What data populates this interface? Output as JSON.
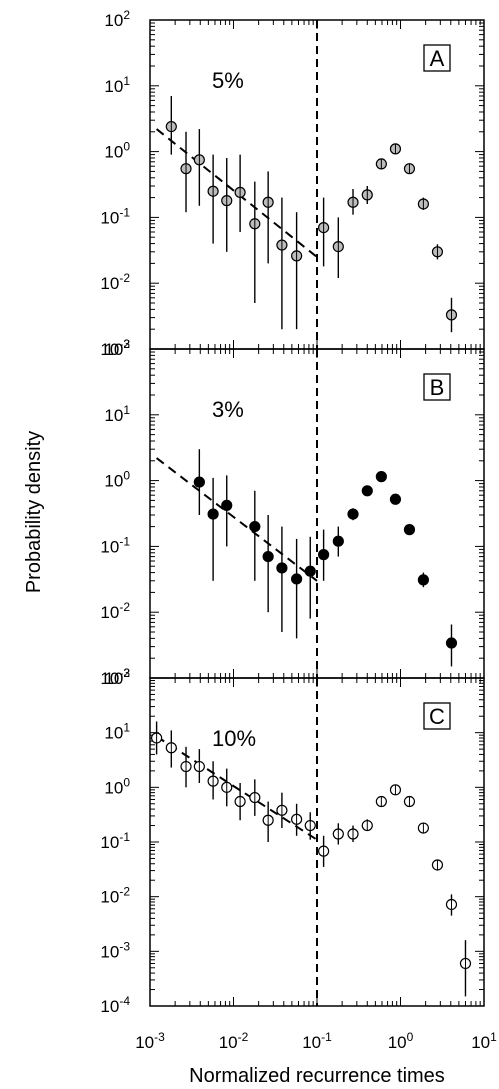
{
  "chart_data": {
    "type": "scatter",
    "x_scale": "log",
    "y_scale": "log",
    "xlabel": "Normalized recurrence times",
    "ylabel": "Probability density",
    "xlim": [
      0.001,
      10
    ],
    "x_ticks": [
      {
        "base": "10",
        "exp": "-3"
      },
      {
        "base": "10",
        "exp": "-2"
      },
      {
        "base": "10",
        "exp": "-1"
      },
      {
        "base": "10",
        "exp": "0"
      },
      {
        "base": "10",
        "exp": "1"
      }
    ],
    "vertical_line_x": 0.1,
    "panels": [
      {
        "tag": "A",
        "annotation": "5%",
        "marker": "gray",
        "ylim": [
          0.001,
          100
        ],
        "y_ticks": [
          {
            "base": "10",
            "exp": "2"
          },
          {
            "base": "10",
            "exp": "1"
          },
          {
            "base": "10",
            "exp": "0"
          },
          {
            "base": "10",
            "exp": "-1"
          },
          {
            "base": "10",
            "exp": "-2"
          },
          {
            "base": "10",
            "exp": "-3"
          }
        ],
        "fit_line": {
          "x": [
            0.0012,
            0.1
          ],
          "y": [
            2.2,
            0.025
          ]
        },
        "points": [
          {
            "x": 0.0018,
            "y": 2.4,
            "lo": 0.9,
            "hi": 7
          },
          {
            "x": 0.0027,
            "y": 0.55,
            "lo": 0.12,
            "hi": 2.0
          },
          {
            "x": 0.0039,
            "y": 0.75,
            "lo": 0.15,
            "hi": 2.2
          },
          {
            "x": 0.0057,
            "y": 0.25,
            "lo": 0.04,
            "hi": 0.9
          },
          {
            "x": 0.0083,
            "y": 0.18,
            "lo": 0.03,
            "hi": 0.8
          },
          {
            "x": 0.012,
            "y": 0.24,
            "lo": 0.06,
            "hi": 0.9
          },
          {
            "x": 0.018,
            "y": 0.08,
            "lo": 0.005,
            "hi": 0.35
          },
          {
            "x": 0.026,
            "y": 0.17,
            "lo": 0.02,
            "hi": 0.5
          },
          {
            "x": 0.038,
            "y": 0.038,
            "lo": 0.002,
            "hi": 0.2
          },
          {
            "x": 0.057,
            "y": 0.026,
            "lo": 0.002,
            "hi": 0.12
          },
          {
            "x": 0.12,
            "y": 0.07,
            "lo": 0.018,
            "hi": 0.2
          },
          {
            "x": 0.18,
            "y": 0.036,
            "lo": 0.012,
            "hi": 0.1
          },
          {
            "x": 0.27,
            "y": 0.17,
            "lo": 0.11,
            "hi": 0.27
          },
          {
            "x": 0.4,
            "y": 0.22,
            "lo": 0.16,
            "hi": 0.3
          },
          {
            "x": 0.59,
            "y": 0.65,
            "lo": 0.55,
            "hi": 0.77
          },
          {
            "x": 0.87,
            "y": 1.1,
            "lo": 0.95,
            "hi": 1.3
          },
          {
            "x": 1.28,
            "y": 0.55,
            "lo": 0.46,
            "hi": 0.65
          },
          {
            "x": 1.88,
            "y": 0.16,
            "lo": 0.13,
            "hi": 0.2
          },
          {
            "x": 2.77,
            "y": 0.03,
            "lo": 0.023,
            "hi": 0.039
          },
          {
            "x": 4.08,
            "y": 0.0033,
            "lo": 0.0018,
            "hi": 0.006
          }
        ]
      },
      {
        "tag": "B",
        "annotation": "3%",
        "marker": "black",
        "ylim": [
          0.001,
          100
        ],
        "y_ticks": [
          {
            "base": "10",
            "exp": "2"
          },
          {
            "base": "10",
            "exp": "1"
          },
          {
            "base": "10",
            "exp": "0"
          },
          {
            "base": "10",
            "exp": "-1"
          },
          {
            "base": "10",
            "exp": "-2"
          },
          {
            "base": "10",
            "exp": "-3"
          }
        ],
        "fit_line": {
          "x": [
            0.0012,
            0.1
          ],
          "y": [
            2.2,
            0.03
          ]
        },
        "points": [
          {
            "x": 0.0039,
            "y": 0.95,
            "lo": 0.3,
            "hi": 3.0
          },
          {
            "x": 0.0057,
            "y": 0.31,
            "lo": 0.03,
            "hi": 1.1
          },
          {
            "x": 0.0083,
            "y": 0.42,
            "lo": 0.1,
            "hi": 1.2
          },
          {
            "x": 0.018,
            "y": 0.2,
            "lo": 0.03,
            "hi": 0.7
          },
          {
            "x": 0.026,
            "y": 0.07,
            "lo": 0.01,
            "hi": 0.3
          },
          {
            "x": 0.038,
            "y": 0.047,
            "lo": 0.005,
            "hi": 0.2
          },
          {
            "x": 0.057,
            "y": 0.032,
            "lo": 0.004,
            "hi": 0.13
          },
          {
            "x": 0.083,
            "y": 0.042,
            "lo": 0.008,
            "hi": 0.14
          },
          {
            "x": 0.12,
            "y": 0.075,
            "lo": 0.03,
            "hi": 0.18
          },
          {
            "x": 0.18,
            "y": 0.12,
            "lo": 0.07,
            "hi": 0.2
          },
          {
            "x": 0.27,
            "y": 0.31,
            "lo": 0.25,
            "hi": 0.38
          },
          {
            "x": 0.4,
            "y": 0.7,
            "lo": 0.6,
            "hi": 0.8
          },
          {
            "x": 0.59,
            "y": 1.15,
            "lo": 1.0,
            "hi": 1.3
          },
          {
            "x": 0.87,
            "y": 0.52,
            "lo": 0.45,
            "hi": 0.6
          },
          {
            "x": 1.28,
            "y": 0.18,
            "lo": 0.15,
            "hi": 0.22
          },
          {
            "x": 1.88,
            "y": 0.031,
            "lo": 0.024,
            "hi": 0.04
          },
          {
            "x": 4.08,
            "y": 0.0034,
            "lo": 0.0015,
            "hi": 0.0065
          }
        ]
      },
      {
        "tag": "C",
        "annotation": "10%",
        "marker": "white",
        "ylim": [
          0.0001,
          100
        ],
        "y_ticks": [
          {
            "base": "10",
            "exp": "2"
          },
          {
            "base": "10",
            "exp": "1"
          },
          {
            "base": "10",
            "exp": "0"
          },
          {
            "base": "10",
            "exp": "-1"
          },
          {
            "base": "10",
            "exp": "-2"
          },
          {
            "base": "10",
            "exp": "-3"
          },
          {
            "base": "10",
            "exp": "-4"
          }
        ],
        "fit_line": {
          "x": [
            0.0012,
            0.1
          ],
          "y": [
            8.5,
            0.11
          ]
        },
        "points": [
          {
            "x": 0.0012,
            "y": 8.0,
            "lo": 4.0,
            "hi": 16.0
          },
          {
            "x": 0.0018,
            "y": 5.3,
            "lo": 2.3,
            "hi": 11.0
          },
          {
            "x": 0.0027,
            "y": 2.4,
            "lo": 1.0,
            "hi": 5.5
          },
          {
            "x": 0.0039,
            "y": 2.4,
            "lo": 1.2,
            "hi": 5.0
          },
          {
            "x": 0.0057,
            "y": 1.3,
            "lo": 0.6,
            "hi": 3.0
          },
          {
            "x": 0.0083,
            "y": 1.0,
            "lo": 0.45,
            "hi": 2.2
          },
          {
            "x": 0.012,
            "y": 0.55,
            "lo": 0.25,
            "hi": 1.2
          },
          {
            "x": 0.018,
            "y": 0.65,
            "lo": 0.3,
            "hi": 1.4
          },
          {
            "x": 0.026,
            "y": 0.25,
            "lo": 0.1,
            "hi": 0.55
          },
          {
            "x": 0.038,
            "y": 0.38,
            "lo": 0.18,
            "hi": 0.8
          },
          {
            "x": 0.057,
            "y": 0.26,
            "lo": 0.13,
            "hi": 0.5
          },
          {
            "x": 0.083,
            "y": 0.2,
            "lo": 0.11,
            "hi": 0.35
          },
          {
            "x": 0.12,
            "y": 0.068,
            "lo": 0.035,
            "hi": 0.13
          },
          {
            "x": 0.18,
            "y": 0.14,
            "lo": 0.09,
            "hi": 0.22
          },
          {
            "x": 0.27,
            "y": 0.14,
            "lo": 0.1,
            "hi": 0.2
          },
          {
            "x": 0.4,
            "y": 0.2,
            "lo": 0.16,
            "hi": 0.26
          },
          {
            "x": 0.59,
            "y": 0.55,
            "lo": 0.47,
            "hi": 0.65
          },
          {
            "x": 0.87,
            "y": 0.9,
            "lo": 0.8,
            "hi": 1.05
          },
          {
            "x": 1.28,
            "y": 0.55,
            "lo": 0.48,
            "hi": 0.64
          },
          {
            "x": 1.88,
            "y": 0.18,
            "lo": 0.15,
            "hi": 0.22
          },
          {
            "x": 2.77,
            "y": 0.038,
            "lo": 0.03,
            "hi": 0.048
          },
          {
            "x": 4.08,
            "y": 0.0072,
            "lo": 0.0045,
            "hi": 0.011
          },
          {
            "x": 6.0,
            "y": 0.0006,
            "lo": 0.00015,
            "hi": 0.0016
          }
        ]
      }
    ]
  }
}
